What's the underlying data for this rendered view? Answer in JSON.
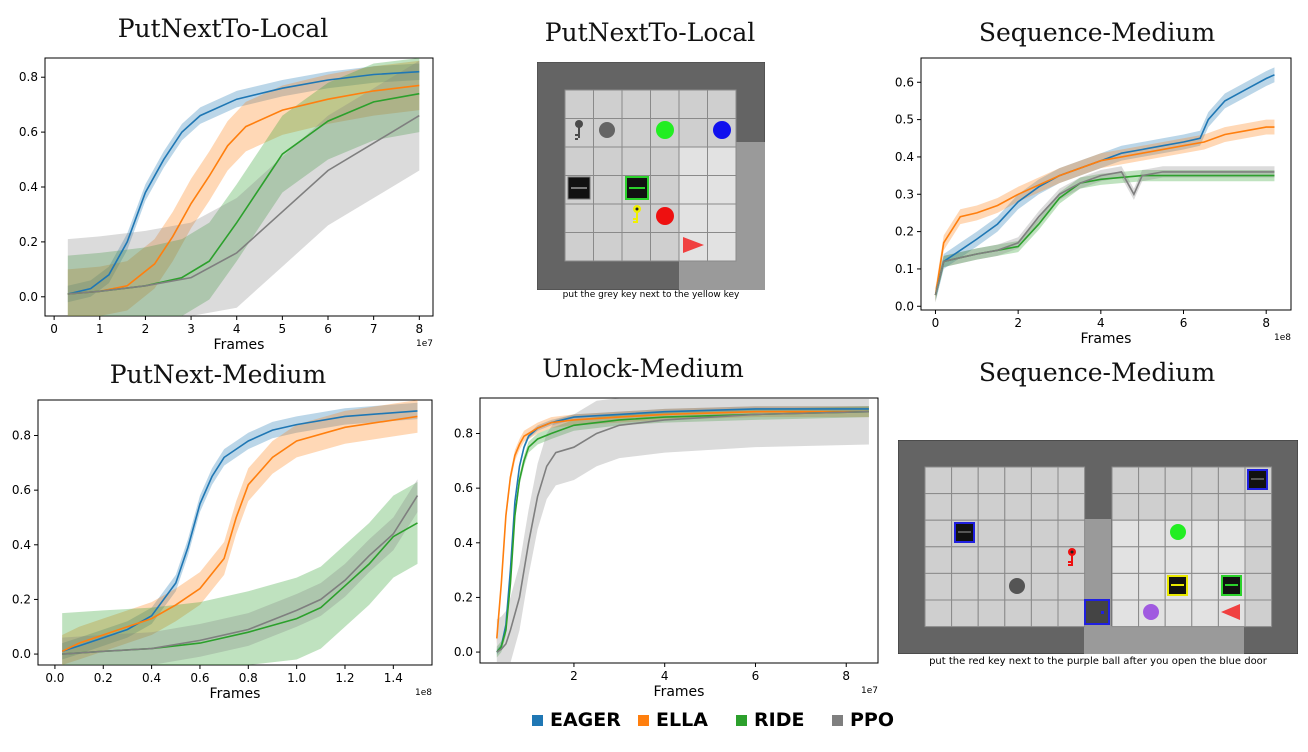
{
  "colors": {
    "EAGER": "#1f77b4",
    "ELLA": "#ff7f0e",
    "RIDE": "#2ca02c",
    "PPO": "#7f7f7f"
  },
  "legend": {
    "items": [
      {
        "label": "EAGER",
        "color": "#1f77b4"
      },
      {
        "label": "ELLA",
        "color": "#ff7f0e"
      },
      {
        "label": "RIDE",
        "color": "#2ca02c"
      },
      {
        "label": "PPO",
        "color": "#7f7f7f"
      }
    ]
  },
  "env_panels": [
    {
      "title": "PutNextTo-Local",
      "caption": "put the grey key next to the yellow key"
    },
    {
      "title": "Sequence-Medium",
      "caption": "put the red key next to the purple ball after you open the blue door"
    }
  ],
  "chart_data": [
    {
      "id": "c1",
      "type": "line",
      "title": "PutNextTo-Local",
      "xlabel": "Frames",
      "ylabel": "",
      "x_scale": "1e7",
      "xlim": [
        -0.2,
        8.3
      ],
      "ylim": [
        -0.07,
        0.87
      ],
      "xticks": [
        0,
        1,
        2,
        3,
        4,
        5,
        6,
        7,
        8
      ],
      "yticks": [
        0.0,
        0.2,
        0.4,
        0.6,
        0.8
      ],
      "series": [
        {
          "name": "EAGER",
          "x": [
            0.3,
            0.8,
            1.2,
            1.6,
            2.0,
            2.4,
            2.8,
            3.2,
            4,
            5,
            6,
            7,
            8
          ],
          "values": [
            0.01,
            0.03,
            0.08,
            0.2,
            0.38,
            0.5,
            0.6,
            0.66,
            0.72,
            0.76,
            0.79,
            0.81,
            0.82
          ],
          "band": 0.03
        },
        {
          "name": "ELLA",
          "x": [
            0.3,
            1,
            1.6,
            2.2,
            2.6,
            3.0,
            3.4,
            3.8,
            4.2,
            5,
            6,
            7,
            8
          ],
          "values": [
            0.01,
            0.02,
            0.04,
            0.12,
            0.22,
            0.34,
            0.44,
            0.55,
            0.62,
            0.68,
            0.72,
            0.75,
            0.77
          ],
          "band": 0.09
        },
        {
          "name": "RIDE",
          "x": [
            0.3,
            1,
            2,
            2.8,
            3.4,
            4,
            4.6,
            5,
            6,
            7,
            8
          ],
          "values": [
            0.01,
            0.02,
            0.04,
            0.07,
            0.13,
            0.27,
            0.42,
            0.52,
            0.64,
            0.71,
            0.74
          ],
          "band": 0.14
        },
        {
          "name": "PPO",
          "x": [
            0.3,
            1,
            2,
            3,
            4,
            5,
            6,
            7,
            8
          ],
          "values": [
            0.01,
            0.02,
            0.04,
            0.07,
            0.16,
            0.31,
            0.46,
            0.56,
            0.66
          ],
          "band": 0.2
        }
      ]
    },
    {
      "id": "c2",
      "type": "line",
      "title": "Sequence-Medium",
      "xlabel": "Frames",
      "ylabel": "",
      "x_scale": "1e8",
      "xlim": [
        -0.35,
        8.6
      ],
      "ylim": [
        -0.01,
        0.665
      ],
      "xticks": [
        0,
        2,
        4,
        6,
        8
      ],
      "yticks": [
        0.0,
        0.1,
        0.2,
        0.3,
        0.4,
        0.5,
        0.6
      ],
      "series": [
        {
          "name": "EAGER",
          "x": [
            0,
            0.2,
            0.6,
            1,
            1.5,
            2,
            2.5,
            3,
            3.5,
            4,
            4.5,
            5,
            5.5,
            6,
            6.4,
            6.6,
            7,
            7.5,
            8,
            8.2
          ],
          "values": [
            0.03,
            0.12,
            0.15,
            0.18,
            0.22,
            0.28,
            0.32,
            0.35,
            0.37,
            0.39,
            0.41,
            0.42,
            0.43,
            0.44,
            0.45,
            0.5,
            0.55,
            0.58,
            0.61,
            0.62
          ],
          "band": 0.02
        },
        {
          "name": "ELLA",
          "x": [
            0,
            0.2,
            0.6,
            1,
            1.5,
            2,
            3,
            4,
            5,
            6,
            6.5,
            7,
            7.5,
            8,
            8.2
          ],
          "values": [
            0.03,
            0.17,
            0.24,
            0.25,
            0.27,
            0.3,
            0.35,
            0.39,
            0.41,
            0.43,
            0.44,
            0.46,
            0.47,
            0.48,
            0.48
          ],
          "band": 0.02
        },
        {
          "name": "RIDE",
          "x": [
            0,
            0.2,
            0.6,
            1,
            1.5,
            2,
            2.5,
            3,
            3.5,
            4,
            5,
            6,
            7,
            8,
            8.2
          ],
          "values": [
            0.03,
            0.12,
            0.13,
            0.14,
            0.15,
            0.16,
            0.22,
            0.29,
            0.33,
            0.34,
            0.35,
            0.35,
            0.35,
            0.35,
            0.35
          ],
          "band": 0.015
        },
        {
          "name": "PPO",
          "x": [
            0,
            0.2,
            0.6,
            1,
            1.5,
            2,
            2.5,
            3,
            3.5,
            4,
            4.5,
            4.8,
            5,
            5.5,
            6,
            7,
            8,
            8.2
          ],
          "values": [
            0.03,
            0.12,
            0.13,
            0.14,
            0.15,
            0.17,
            0.24,
            0.3,
            0.33,
            0.35,
            0.36,
            0.3,
            0.35,
            0.36,
            0.36,
            0.36,
            0.36,
            0.36
          ],
          "band": 0.015
        }
      ]
    },
    {
      "id": "c3",
      "type": "line",
      "title": "PutNext-Medium",
      "xlabel": "Frames",
      "ylabel": "",
      "x_scale": "1e8",
      "xlim": [
        -0.07,
        1.56
      ],
      "ylim": [
        -0.04,
        0.93
      ],
      "xticks": [
        0.0,
        0.2,
        0.4,
        0.6,
        0.8,
        1.0,
        1.2,
        1.4
      ],
      "yticks": [
        0.0,
        0.2,
        0.4,
        0.6,
        0.8
      ],
      "series": [
        {
          "name": "EAGER",
          "x": [
            0.03,
            0.1,
            0.2,
            0.3,
            0.4,
            0.5,
            0.55,
            0.6,
            0.65,
            0.7,
            0.8,
            0.9,
            1.0,
            1.2,
            1.5
          ],
          "values": [
            0.01,
            0.03,
            0.06,
            0.09,
            0.14,
            0.26,
            0.39,
            0.55,
            0.65,
            0.72,
            0.78,
            0.82,
            0.84,
            0.87,
            0.89
          ],
          "band": 0.03
        },
        {
          "name": "ELLA",
          "x": [
            0.03,
            0.1,
            0.2,
            0.3,
            0.4,
            0.5,
            0.6,
            0.7,
            0.75,
            0.8,
            0.9,
            1.0,
            1.2,
            1.5
          ],
          "values": [
            0.01,
            0.04,
            0.07,
            0.1,
            0.13,
            0.18,
            0.24,
            0.35,
            0.5,
            0.62,
            0.72,
            0.78,
            0.83,
            0.87
          ],
          "band": 0.06
        },
        {
          "name": "RIDE",
          "x": [
            0.03,
            0.2,
            0.4,
            0.6,
            0.8,
            1.0,
            1.1,
            1.2,
            1.3,
            1.4,
            1.5
          ],
          "values": [
            0.0,
            0.01,
            0.02,
            0.04,
            0.08,
            0.13,
            0.17,
            0.25,
            0.33,
            0.43,
            0.48
          ],
          "band": 0.15
        },
        {
          "name": "PPO",
          "x": [
            0.03,
            0.2,
            0.4,
            0.6,
            0.8,
            1.0,
            1.1,
            1.2,
            1.3,
            1.4,
            1.5
          ],
          "values": [
            0.0,
            0.01,
            0.02,
            0.05,
            0.09,
            0.16,
            0.2,
            0.27,
            0.36,
            0.44,
            0.58
          ],
          "band": 0.06
        }
      ]
    },
    {
      "id": "c4",
      "type": "line",
      "title": "Unlock-Medium",
      "xlabel": "Frames",
      "ylabel": "",
      "x_scale": "1e7",
      "xlim": [
        -0.7,
        87
      ],
      "ylim": [
        -0.04,
        0.93
      ],
      "xticks": [
        2,
        4,
        6,
        8
      ],
      "yticks": [
        0.0,
        0.2,
        0.4,
        0.6,
        0.8
      ],
      "xtick_scale": 10,
      "series": [
        {
          "name": "EAGER",
          "x": [
            3,
            4,
            5,
            6,
            7,
            8,
            9,
            10,
            12,
            15,
            20,
            30,
            40,
            60,
            85
          ],
          "values": [
            0.0,
            0.02,
            0.1,
            0.3,
            0.55,
            0.68,
            0.75,
            0.79,
            0.82,
            0.84,
            0.86,
            0.87,
            0.88,
            0.89,
            0.89
          ],
          "band": 0.01
        },
        {
          "name": "ELLA",
          "x": [
            3,
            4,
            5,
            6,
            7,
            8,
            9,
            10,
            12,
            15,
            20,
            30,
            40,
            60,
            85
          ],
          "values": [
            0.05,
            0.25,
            0.5,
            0.64,
            0.72,
            0.76,
            0.79,
            0.8,
            0.82,
            0.84,
            0.85,
            0.86,
            0.87,
            0.88,
            0.88
          ],
          "band": 0.02
        },
        {
          "name": "RIDE",
          "x": [
            3,
            4,
            5,
            6,
            7,
            8,
            9,
            10,
            12,
            15,
            20,
            30,
            40,
            60,
            85
          ],
          "values": [
            0.0,
            0.02,
            0.08,
            0.25,
            0.5,
            0.63,
            0.7,
            0.75,
            0.78,
            0.8,
            0.83,
            0.85,
            0.86,
            0.87,
            0.88
          ],
          "band": 0.02
        },
        {
          "name": "PPO",
          "x": [
            3,
            4,
            5,
            6,
            8,
            10,
            12,
            14,
            16,
            20,
            25,
            30,
            40,
            60,
            85
          ],
          "values": [
            0.0,
            0.01,
            0.03,
            0.08,
            0.2,
            0.4,
            0.57,
            0.68,
            0.73,
            0.75,
            0.8,
            0.83,
            0.85,
            0.87,
            0.88
          ],
          "band": 0.12
        }
      ]
    }
  ]
}
